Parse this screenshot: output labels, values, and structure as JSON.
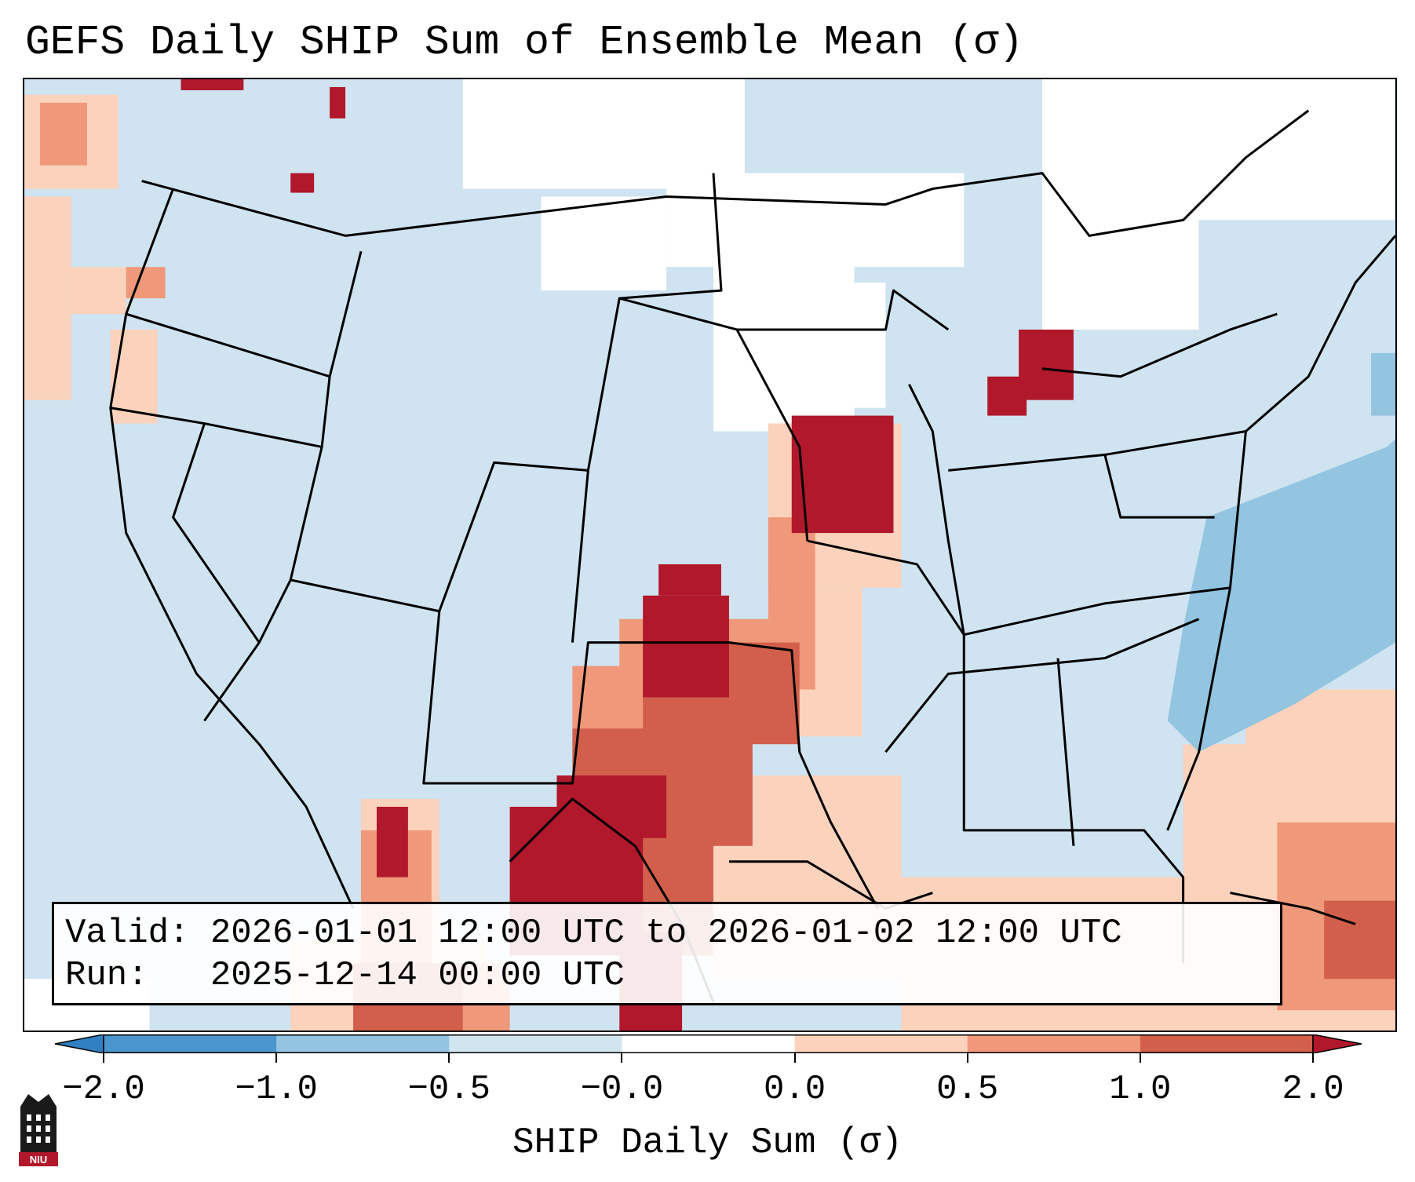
{
  "title": "GEFS Daily SHIP Sum of Ensemble Mean (σ)",
  "info": {
    "valid_label": "Valid:",
    "valid_value": "2026-01-01 12:00 UTC to 2026-01-02 12:00 UTC",
    "run_label": "Run:",
    "run_value": "2025-12-14 00:00 UTC"
  },
  "colorbar": {
    "label": "SHIP Daily Sum (σ)",
    "ticks": [
      "−2.0",
      "−1.0",
      "−0.5",
      "−0.0",
      "0.0",
      "0.5",
      "1.0",
      "2.0"
    ],
    "colors": [
      "#2f7fc1",
      "#4b96cc",
      "#93c4e0",
      "#d1e5f0",
      "#ffffff",
      "#fbd2bc",
      "#f0987a",
      "#d25f4b",
      "#b1182b"
    ]
  },
  "logo": {
    "text": "NIU",
    "color": "#b1182b"
  },
  "map": {
    "region": "Continental United States, southern Canada, northern Mexico, Gulf of Mexico, Caribbean",
    "background_category": "-0.0 (light blue)",
    "notable_features": [
      "Strong positive anomaly over south Texas and northern Mexico",
      "Positive anomaly Oklahoma–Iowa corridor",
      "Positive anomaly over Michigan",
      "Negative anomaly over western Atlantic"
    ]
  }
}
